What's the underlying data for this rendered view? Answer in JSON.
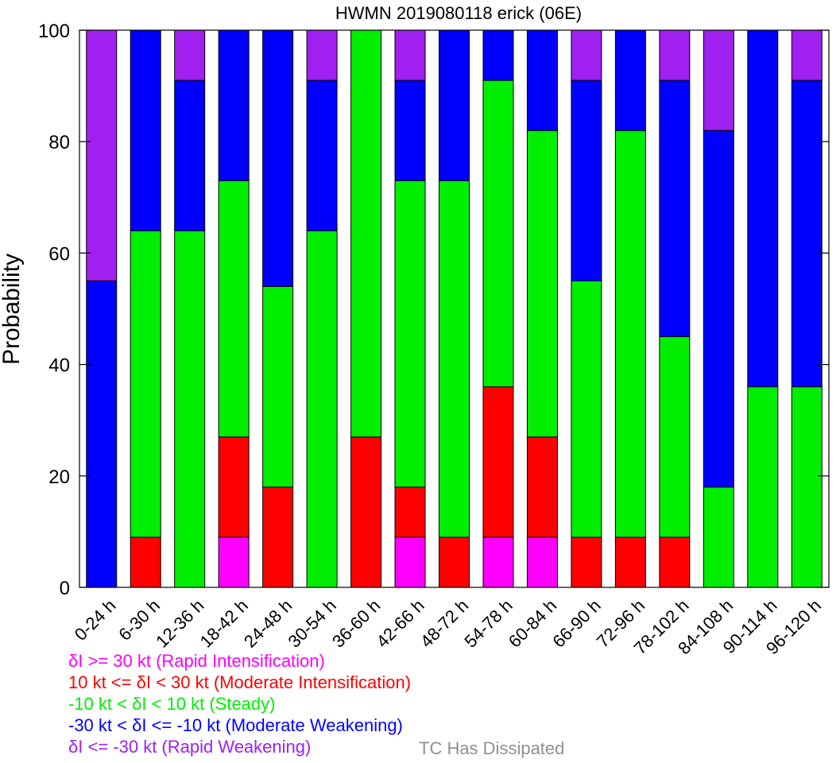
{
  "chart_data": {
    "type": "bar",
    "stacked": true,
    "title": "HWMN 2019080118 erick (06E)",
    "ylabel": "Probability",
    "xlabel": "",
    "ylim": [
      0,
      100
    ],
    "yticks": [
      0,
      20,
      40,
      60,
      80,
      100
    ],
    "grid": false,
    "categories": [
      "0-24 h",
      "6-30 h",
      "12-36 h",
      "18-42 h",
      "24-48 h",
      "30-54 h",
      "36-60 h",
      "42-66 h",
      "48-72 h",
      "54-78 h",
      "60-84 h",
      "66-90 h",
      "72-96 h",
      "78-102 h",
      "84-108 h",
      "90-114 h",
      "96-120 h"
    ],
    "series": [
      {
        "name": "δI >= 30 kt (Rapid Intensification)",
        "color": "#ff00ff",
        "values": [
          0,
          0,
          0,
          9,
          0,
          0,
          0,
          9,
          0,
          9,
          9,
          0,
          0,
          0,
          0,
          0,
          0
        ]
      },
      {
        "name": "10 kt <= δI < 30 kt (Moderate Intensification)",
        "color": "#ff0000",
        "values": [
          0,
          9,
          0,
          18,
          18,
          0,
          27,
          9,
          9,
          27,
          18,
          9,
          9,
          9,
          0,
          0,
          0
        ]
      },
      {
        "name": "-10 kt < δI < 10 kt (Steady)",
        "color": "#00ee00",
        "values": [
          0,
          55,
          64,
          46,
          36,
          64,
          73,
          55,
          64,
          55,
          55,
          46,
          73,
          36,
          18,
          36,
          36
        ]
      },
      {
        "name": "-30 kt < δI <= -10 kt (Moderate Weakening)",
        "color": "#0000ff",
        "values": [
          55,
          36,
          27,
          27,
          46,
          27,
          0,
          18,
          27,
          9,
          18,
          36,
          18,
          46,
          64,
          64,
          55
        ]
      },
      {
        "name": "δI <= -30 kt (Rapid Weakening)",
        "color": "#a020f0",
        "values": [
          45,
          0,
          9,
          0,
          0,
          9,
          0,
          9,
          0,
          0,
          0,
          9,
          0,
          9,
          18,
          0,
          9
        ]
      }
    ],
    "dissipated_label": "TC Has Dissipated",
    "dissipated_color": "#909090"
  },
  "legend": [
    {
      "text": "δI >= 30 kt (Rapid Intensification)",
      "color": "#ff00ff"
    },
    {
      "text": "10 kt <= δI < 30 kt (Moderate Intensification)",
      "color": "#ff0000"
    },
    {
      "text": "-10 kt < δI < 10 kt (Steady)",
      "color": "#00ee00"
    },
    {
      "text": "-30 kt < δI <= -10 kt (Moderate Weakening)",
      "color": "#0000ff"
    },
    {
      "text": "δI <= -30 kt (Rapid Weakening)",
      "color": "#a020f0"
    }
  ]
}
